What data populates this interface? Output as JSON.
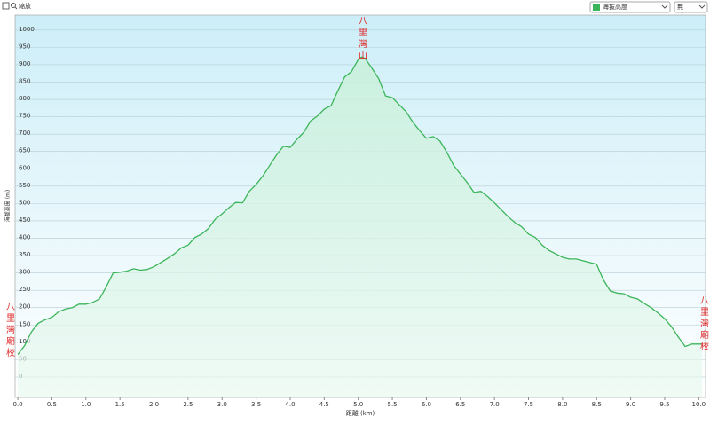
{
  "ui": {
    "zoom_label": "縮放",
    "overlay_option": "無"
  },
  "chart_data": {
    "type": "area",
    "x_label": "距離 (km)",
    "y_label": "海拔高度 (m)",
    "annotations": [
      "八里灣山",
      "八里灣廟校",
      "八里灣廟校"
    ],
    "x": [
      0.0,
      0.1,
      0.2,
      0.3,
      0.4,
      0.5,
      0.6,
      0.7,
      0.8,
      0.9,
      1.0,
      1.1,
      1.2,
      1.3,
      1.4,
      1.5,
      1.6,
      1.7,
      1.8,
      1.9,
      2.0,
      2.1,
      2.2,
      2.3,
      2.4,
      2.5,
      2.6,
      2.7,
      2.8,
      2.9,
      3.0,
      3.1,
      3.2,
      3.3,
      3.4,
      3.5,
      3.6,
      3.7,
      3.8,
      3.9,
      4.0,
      4.1,
      4.2,
      4.3,
      4.4,
      4.5,
      4.6,
      4.7,
      4.8,
      4.9,
      5.0,
      5.05,
      5.1,
      5.2,
      5.3,
      5.4,
      5.5,
      5.6,
      5.7,
      5.8,
      5.9,
      6.0,
      6.1,
      6.2,
      6.3,
      6.4,
      6.5,
      6.6,
      6.7,
      6.8,
      6.9,
      7.0,
      7.1,
      7.2,
      7.3,
      7.4,
      7.5,
      7.6,
      7.7,
      7.8,
      7.9,
      8.0,
      8.1,
      8.2,
      8.3,
      8.4,
      8.5,
      8.6,
      8.7,
      8.8,
      8.9,
      9.0,
      9.1,
      9.2,
      9.3,
      9.4,
      9.5,
      9.6,
      9.7,
      9.8,
      9.9,
      10.05
    ],
    "series": [
      {
        "name": "海拔高度",
        "color": "#3cb55a",
        "values": [
          65,
          90,
          130,
          155,
          165,
          172,
          188,
          196,
          200,
          210,
          210,
          215,
          225,
          260,
          300,
          302,
          305,
          312,
          308,
          310,
          318,
          330,
          342,
          355,
          372,
          380,
          402,
          412,
          428,
          455,
          470,
          488,
          503,
          502,
          535,
          555,
          580,
          610,
          640,
          665,
          662,
          685,
          705,
          738,
          752,
          772,
          782,
          825,
          865,
          880,
          915,
          922,
          918,
          890,
          860,
          810,
          805,
          785,
          765,
          735,
          710,
          688,
          693,
          680,
          648,
          610,
          585,
          560,
          532,
          535,
          520,
          502,
          482,
          462,
          445,
          433,
          412,
          402,
          380,
          365,
          355,
          345,
          340,
          340,
          335,
          330,
          325,
          280,
          248,
          242,
          240,
          230,
          225,
          212,
          200,
          185,
          168,
          145,
          115,
          88,
          95,
          95
        ]
      }
    ],
    "xlim": [
      -0.04,
      10.1
    ],
    "ylim": [
      -59,
      1043
    ],
    "xticks": [
      {
        "value": 0,
        "label": "0.0"
      },
      0.5,
      {
        "value": 1,
        "label": "1.0"
      },
      1.5,
      {
        "value": 2,
        "label": "2.0"
      },
      2.5,
      {
        "value": 3,
        "label": "3.0"
      },
      3.5,
      {
        "value": 4,
        "label": "4.0"
      },
      4.5,
      {
        "value": 5,
        "label": "5.0"
      },
      5.5,
      {
        "value": 6,
        "label": "6.0"
      },
      6.5,
      {
        "value": 7,
        "label": "7.0"
      },
      7.5,
      {
        "value": 8,
        "label": "8.0"
      },
      8.5,
      {
        "value": 9,
        "label": "9.0"
      },
      9.5,
      {
        "value": 10,
        "label": "10.0"
      }
    ],
    "yticks": [
      0,
      50,
      100,
      150,
      200,
      250,
      300,
      350,
      400,
      450,
      500,
      550,
      600,
      650,
      700,
      750,
      800,
      850,
      900,
      950,
      1000
    ],
    "grid": true
  }
}
